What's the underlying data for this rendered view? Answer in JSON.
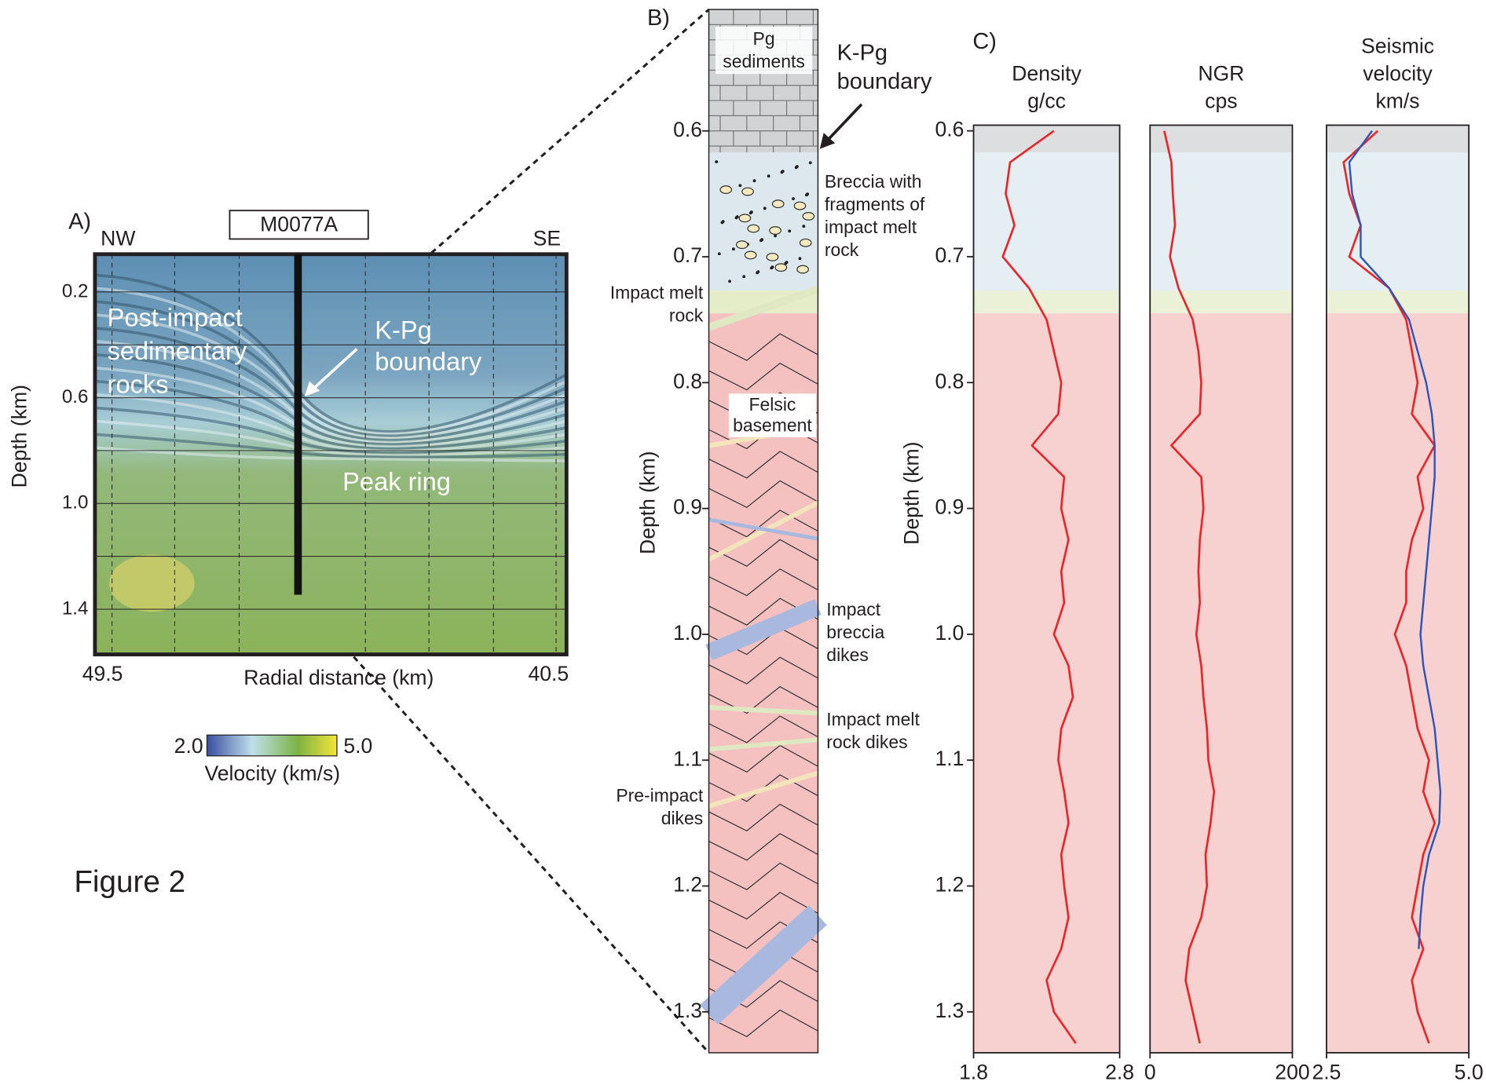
{
  "figure_label": "Figure 2",
  "panel_a": {
    "label": "A)",
    "left_dir": "NW",
    "right_dir": "SE",
    "well": "M0077A",
    "ylabel": "Depth (km)",
    "ylim": [
      0.057,
      1.571
    ],
    "yticks": [
      0.2,
      0.6,
      {
        "value": 1,
        "label": "1.0"
      },
      1.4
    ],
    "xlabel": "Radial distance (km)",
    "xticks": [
      49.5,
      40.5
    ],
    "annotations": {
      "post_impact": [
        "Post-impact",
        "sedimentary",
        "rocks"
      ],
      "kpg": [
        "K-Pg",
        "boundary"
      ],
      "peak_ring": "Peak ring"
    },
    "colorbar": {
      "ticks": [
        {
          "value": 2,
          "label": "2.0"
        },
        {
          "value": 5,
          "label": "5.0"
        }
      ],
      "label": "Velocity (km/s)"
    }
  },
  "panel_b": {
    "label": "B)",
    "ylabel": "Depth (km)",
    "ylim": [
      0.5035,
      1.3325
    ],
    "yticks": [
      0.6,
      0.7,
      0.8,
      0.9,
      {
        "value": 1,
        "label": "1.0"
      },
      1.1,
      1.2,
      1.3
    ],
    "units": [
      {
        "top": 0.5035,
        "bottom": 0.617,
        "color": "#d2d3d5"
      },
      {
        "top": 0.617,
        "bottom": 0.727,
        "color": "#dce8ee"
      },
      {
        "top": 0.727,
        "bottom": 0.745,
        "color": "#e4ecc8"
      },
      {
        "top": 0.745,
        "bottom": 1.3325,
        "color": "#f4c0c0"
      }
    ],
    "labels": {
      "pg": [
        "Pg",
        "sediments"
      ],
      "kpg": [
        "K-Pg",
        "boundary"
      ],
      "breccia": [
        "Breccia with",
        "fragments of",
        "impact melt",
        "rock"
      ],
      "melt": [
        "Impact melt",
        "rock"
      ],
      "felsic": [
        "Felsic",
        "basement"
      ],
      "breccia_dikes": [
        "Impact",
        "breccia",
        "dikes"
      ],
      "melt_dikes": [
        "Impact melt",
        "rock dikes"
      ],
      "pre_impact": [
        "Pre-impact",
        "dikes"
      ]
    }
  },
  "panel_c": {
    "label": "C)",
    "ylabel": "Depth (km)",
    "ylim": [
      0.5955,
      1.3325
    ],
    "yticks": [
      0.6,
      0.7,
      0.8,
      0.9,
      {
        "value": 1,
        "label": "1.0"
      },
      1.1,
      1.2,
      1.3
    ],
    "depth": [
      0.6,
      0.625,
      0.65,
      0.675,
      0.7,
      0.725,
      0.75,
      0.775,
      0.8,
      0.825,
      0.85,
      0.875,
      0.9,
      0.925,
      0.95,
      0.975,
      1.0,
      1.025,
      1.05,
      1.075,
      1.1,
      1.125,
      1.15,
      1.175,
      1.2,
      1.225,
      1.25,
      1.275,
      1.3,
      1.325
    ],
    "tracks": [
      {
        "title": [
          "Density",
          "g/cc"
        ],
        "xlim": [
          1.8,
          2.8
        ],
        "xticks": [
          1.8,
          2.8
        ],
        "series": [
          {
            "color": "#e8262a",
            "values": [
              2.35,
              2.05,
              2.02,
              2.08,
              2.0,
              2.18,
              2.3,
              2.35,
              2.4,
              2.38,
              2.2,
              2.42,
              2.4,
              2.45,
              2.4,
              2.42,
              2.35,
              2.45,
              2.48,
              2.4,
              2.38,
              2.42,
              2.45,
              2.4,
              2.42,
              2.45,
              2.4,
              2.3,
              2.35,
              2.5
            ]
          }
        ]
      },
      {
        "title": [
          "NGR",
          "cps"
        ],
        "xlim": [
          0,
          200
        ],
        "xticks": [
          0,
          200
        ],
        "series": [
          {
            "color": "#e8262a",
            "values": [
              20,
              30,
              32,
              35,
              28,
              40,
              60,
              68,
              72,
              70,
              30,
              72,
              75,
              70,
              68,
              70,
              65,
              72,
              75,
              80,
              82,
              90,
              85,
              78,
              80,
              72,
              55,
              50,
              60,
              70
            ]
          }
        ]
      },
      {
        "title": [
          "Seismic",
          "velocity",
          "km/s"
        ],
        "xlim": [
          2.5,
          5
        ],
        "xticks": [
          2.5,
          {
            "value": 5,
            "label": "5.0"
          }
        ],
        "series": [
          {
            "color": "#e8262a",
            "values": [
              3.4,
              2.8,
              2.9,
              3.1,
              2.9,
              3.6,
              3.9,
              4.0,
              4.1,
              4.0,
              4.4,
              4.1,
              4.2,
              4.0,
              3.9,
              3.9,
              3.7,
              3.9,
              4.0,
              4.1,
              4.3,
              4.2,
              4.4,
              4.2,
              4.1,
              4.0,
              4.2,
              4.0,
              4.1,
              4.3
            ]
          },
          {
            "color": "#2b55b8",
            "values": [
              3.3,
              2.9,
              2.95,
              3.1,
              3.1,
              3.6,
              3.95,
              4.1,
              4.25,
              4.35,
              4.4,
              4.4,
              4.35,
              4.3,
              4.25,
              4.2,
              4.15,
              4.2,
              4.3,
              4.4,
              4.45,
              4.5,
              4.48,
              4.3,
              4.2,
              4.15,
              4.12,
              null,
              null,
              null
            ]
          }
        ]
      }
    ]
  }
}
